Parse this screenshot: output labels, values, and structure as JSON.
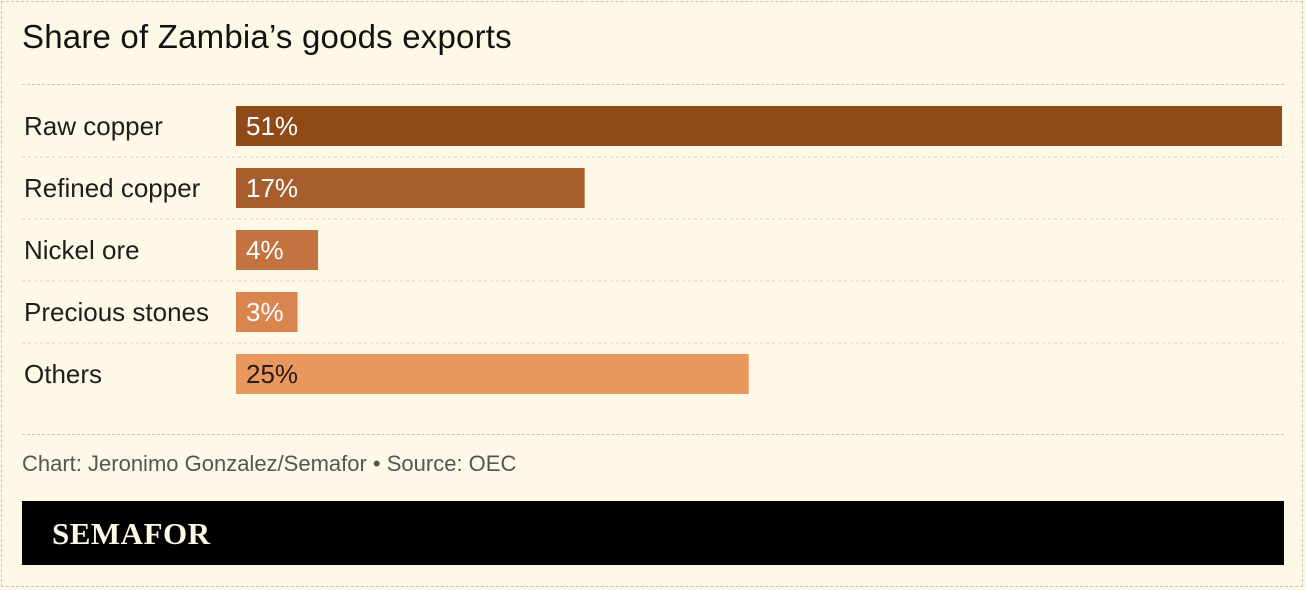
{
  "title": "Share of Zambia’s goods exports",
  "source": "Chart: Jeronimo Gonzalez/Semafor • Source: OEC",
  "brand": "SEMAFOR",
  "chart_data": {
    "type": "bar",
    "orientation": "horizontal",
    "title": "Share of Zambia’s goods exports",
    "categories": [
      "Raw copper",
      "Refined copper",
      "Nickel ore",
      "Precious stones",
      "Others"
    ],
    "values": [
      51,
      17,
      4,
      3,
      25
    ],
    "value_labels": [
      "51%",
      "17%",
      "4%",
      "3%",
      "25%"
    ],
    "unit": "%",
    "xlim": [
      0,
      51
    ],
    "grid": false,
    "legend": "none",
    "colors": [
      "#8f4a17",
      "#a85d2c",
      "#c37340",
      "#d98550",
      "#e8985f"
    ],
    "value_label_colors": [
      "#ffffff",
      "#ffffff",
      "#ffffff",
      "#ffffff",
      "#2a1a10"
    ]
  }
}
